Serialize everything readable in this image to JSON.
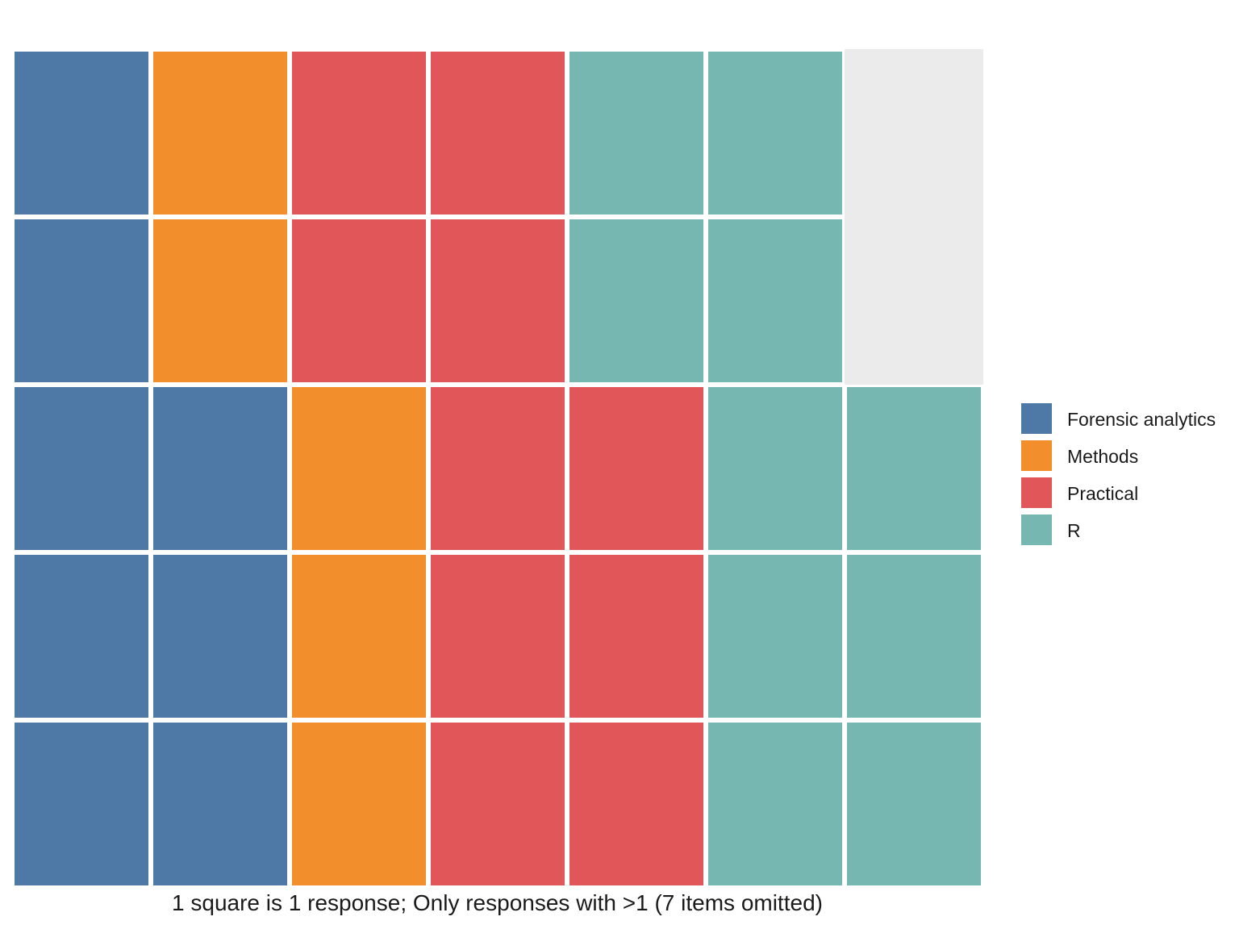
{
  "chart_data": {
    "type": "waffle",
    "rows": 5,
    "columns": 7,
    "unit": "1 square is 1 response",
    "categories": [
      "Forensic analytics",
      "Methods",
      "Practical",
      "R"
    ],
    "values": [
      8,
      5,
      10,
      10
    ],
    "colors": {
      "Forensic analytics": "#4e79a7",
      "Methods": "#f28e2b",
      "Practical": "#e15759",
      "R": "#76b7b2",
      "empty": "#ebebeb"
    },
    "fill_order": "column-wise from bottom-left, upward",
    "empty_cells": 2,
    "caption": "1 square is 1 response; Only responses with >1 (7 items omitted)",
    "legend_position": "right"
  }
}
